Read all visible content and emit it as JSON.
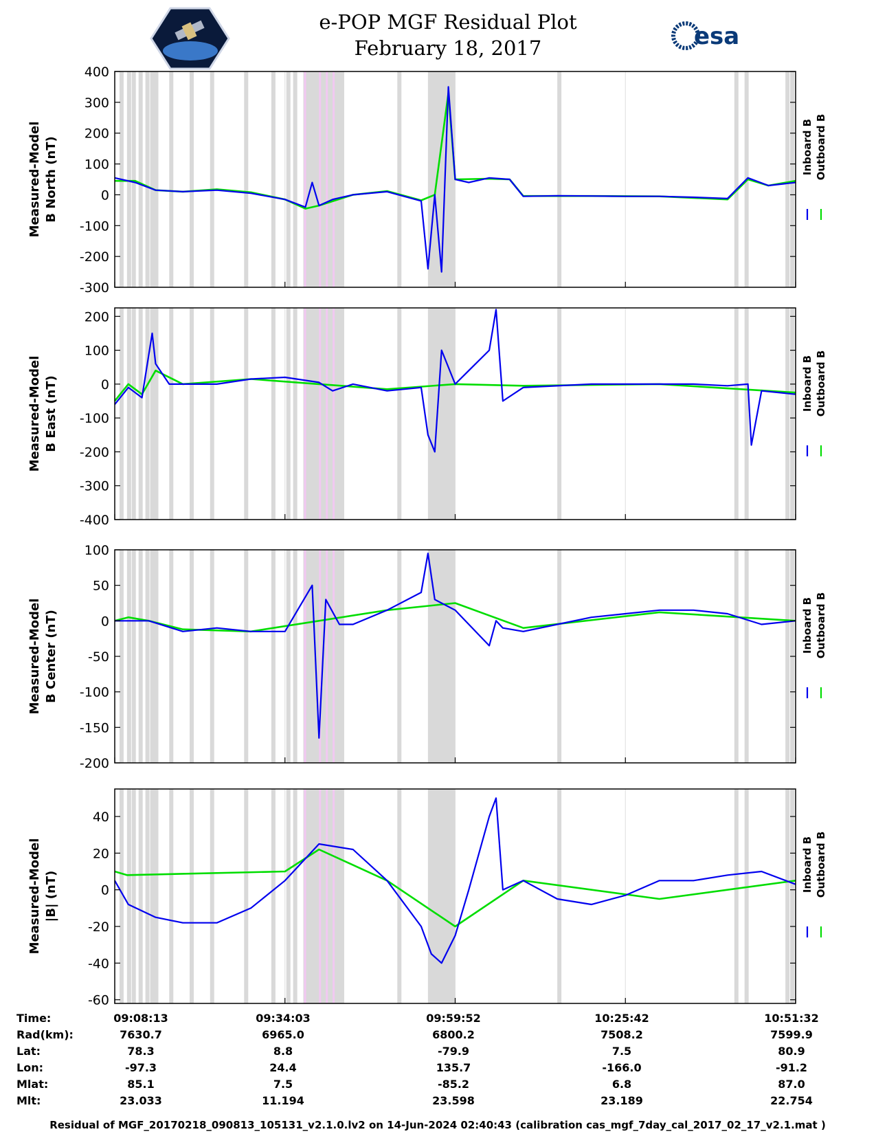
{
  "header": {
    "title": "e-POP MGF Residual Plot",
    "subtitle": "February 18, 2017",
    "right_logo_text": "esa",
    "left_logo": "cassiope-mission-badge"
  },
  "colors": {
    "inboard": "#0000ee",
    "outboard": "#00dd00",
    "shade_gray": "#d9d9d9",
    "shade_pink": "#f2c8f2",
    "grid": "#dddddd"
  },
  "chart_data": [
    {
      "type": "line",
      "ylabel_line1": "Measured-Model",
      "ylabel_line2": "B North (nT)",
      "ylim": [
        -300,
        400
      ],
      "yticks": [
        "400",
        "300",
        "200",
        "100",
        "0",
        "-100",
        "-200",
        "-300"
      ],
      "legend": [
        "Inboard B",
        "Outboard B"
      ],
      "series": [
        {
          "name": "Inboard B",
          "x": [
            0,
            0.03,
            0.06,
            0.1,
            0.15,
            0.2,
            0.25,
            0.28,
            0.29,
            0.3,
            0.32,
            0.35,
            0.4,
            0.45,
            0.46,
            0.47,
            0.48,
            0.49,
            0.5,
            0.52,
            0.55,
            0.58,
            0.6,
            0.65,
            0.7,
            0.75,
            0.8,
            0.85,
            0.9,
            0.93,
            0.96,
            1.0
          ],
          "values": [
            55,
            40,
            15,
            10,
            15,
            5,
            -15,
            -40,
            40,
            -35,
            -15,
            0,
            10,
            -20,
            -240,
            0,
            -250,
            350,
            50,
            40,
            55,
            50,
            -5,
            -3,
            -4,
            -5,
            -5,
            -8,
            -12,
            55,
            30,
            40
          ]
        },
        {
          "name": "Outboard B",
          "x": [
            0,
            0.03,
            0.06,
            0.1,
            0.15,
            0.2,
            0.25,
            0.28,
            0.3,
            0.35,
            0.4,
            0.45,
            0.47,
            0.49,
            0.5,
            0.55,
            0.58,
            0.6,
            0.7,
            0.8,
            0.9,
            0.93,
            0.96,
            1.0
          ],
          "values": [
            45,
            45,
            15,
            10,
            18,
            8,
            -15,
            -45,
            -35,
            0,
            12,
            -18,
            0,
            330,
            50,
            52,
            50,
            -4,
            -4,
            -5,
            -15,
            50,
            30,
            45
          ]
        }
      ]
    },
    {
      "type": "line",
      "ylabel_line1": "Measured-Model",
      "ylabel_line2": "B East (nT)",
      "ylim": [
        -400,
        225
      ],
      "yticks": [
        "200",
        "100",
        "0",
        "-100",
        "-200",
        "-300",
        "-400"
      ],
      "legend": [
        "Inboard B",
        "Outboard B"
      ],
      "series": [
        {
          "name": "Inboard B",
          "x": [
            0,
            0.02,
            0.04,
            0.055,
            0.06,
            0.08,
            0.15,
            0.2,
            0.25,
            0.3,
            0.32,
            0.35,
            0.4,
            0.45,
            0.46,
            0.47,
            0.48,
            0.5,
            0.52,
            0.55,
            0.56,
            0.57,
            0.6,
            0.7,
            0.8,
            0.85,
            0.9,
            0.93,
            0.935,
            0.95,
            1.0
          ],
          "values": [
            -60,
            -10,
            -40,
            150,
            60,
            0,
            0,
            15,
            20,
            5,
            -20,
            0,
            -20,
            -10,
            -150,
            -200,
            100,
            0,
            40,
            100,
            220,
            -50,
            -10,
            0,
            0,
            0,
            -5,
            0,
            -180,
            -20,
            -30
          ]
        },
        {
          "name": "Outboard B",
          "x": [
            0,
            0.02,
            0.04,
            0.06,
            0.1,
            0.2,
            0.3,
            0.4,
            0.5,
            0.6,
            0.8,
            1.0
          ],
          "values": [
            -50,
            0,
            -30,
            40,
            0,
            15,
            0,
            -15,
            0,
            -5,
            0,
            -25
          ]
        }
      ]
    },
    {
      "type": "line",
      "ylabel_line1": "Measured-Model",
      "ylabel_line2": "B Center (nT)",
      "ylim": [
        -200,
        100
      ],
      "yticks": [
        "100",
        "50",
        "0",
        "-50",
        "-100",
        "-150",
        "-200"
      ],
      "legend": [
        "Inboard B",
        "Outboard B"
      ],
      "series": [
        {
          "name": "Inboard B",
          "x": [
            0,
            0.05,
            0.1,
            0.15,
            0.2,
            0.25,
            0.29,
            0.3,
            0.31,
            0.33,
            0.35,
            0.4,
            0.45,
            0.46,
            0.47,
            0.5,
            0.55,
            0.56,
            0.57,
            0.6,
            0.65,
            0.7,
            0.75,
            0.8,
            0.85,
            0.9,
            0.95,
            1.0
          ],
          "values": [
            0,
            0,
            -15,
            -10,
            -15,
            -15,
            50,
            -165,
            30,
            -5,
            -5,
            15,
            40,
            95,
            30,
            15,
            -35,
            0,
            -10,
            -15,
            -5,
            5,
            10,
            15,
            15,
            10,
            -5,
            0
          ]
        },
        {
          "name": "Outboard B",
          "x": [
            0,
            0.02,
            0.05,
            0.1,
            0.2,
            0.3,
            0.4,
            0.5,
            0.6,
            0.8,
            1.0
          ],
          "values": [
            0,
            5,
            0,
            -12,
            -15,
            0,
            15,
            25,
            -10,
            12,
            0
          ]
        }
      ]
    },
    {
      "type": "line",
      "ylabel_line1": "Measured-Model",
      "ylabel_line2": "|B| (nT)",
      "ylim": [
        -62,
        55
      ],
      "yticks": [
        "40",
        "20",
        "0",
        "-20",
        "-40",
        "-60"
      ],
      "legend": [
        "Inboard B",
        "Outboard B"
      ],
      "series": [
        {
          "name": "Inboard B",
          "x": [
            0,
            0.02,
            0.06,
            0.1,
            0.15,
            0.2,
            0.25,
            0.3,
            0.35,
            0.4,
            0.45,
            0.465,
            0.48,
            0.5,
            0.52,
            0.55,
            0.56,
            0.57,
            0.6,
            0.65,
            0.7,
            0.75,
            0.8,
            0.85,
            0.9,
            0.95,
            1.0
          ],
          "values": [
            5,
            -8,
            -15,
            -18,
            -18,
            -10,
            5,
            25,
            22,
            5,
            -20,
            -35,
            -40,
            -25,
            0,
            40,
            50,
            0,
            5,
            -5,
            -8,
            -3,
            5,
            5,
            8,
            10,
            3
          ]
        },
        {
          "name": "Outboard B",
          "x": [
            0,
            0.018,
            0.25,
            0.3,
            0.4,
            0.5,
            0.6,
            0.8,
            1.0
          ],
          "values": [
            10,
            8,
            10,
            22,
            5,
            -20,
            5,
            -5,
            5
          ]
        }
      ]
    }
  ],
  "info_table": {
    "row_labels": [
      "Time:",
      "Rad(km):",
      "Lat:",
      "Lon:",
      "Mlat:",
      "Mlt:"
    ],
    "columns": [
      [
        "09:08:13",
        "7630.7",
        "78.3",
        "-97.3",
        "85.1",
        "23.033"
      ],
      [
        "09:34:03",
        "6965.0",
        "8.8",
        "24.4",
        "7.5",
        "11.194"
      ],
      [
        "09:59:52",
        "6800.2",
        "-79.9",
        "135.7",
        "-85.2",
        "23.598"
      ],
      [
        "10:25:42",
        "7508.2",
        "7.5",
        "-166.0",
        "6.8",
        "23.189"
      ],
      [
        "10:51:32",
        "7599.9",
        "80.9",
        "-91.2",
        "87.0",
        "22.754"
      ]
    ]
  },
  "shading": {
    "gray_bands": [
      [
        0.46,
        0.5
      ],
      [
        0.277,
        0.337
      ]
    ],
    "pink_lines": [
      0.278,
      0.3,
      0.31,
      0.32
    ]
  },
  "footer": "Residual of MGF_20170218_090813_105131_v2.1.0.lv2 on 14-Jun-2024 02:40:43 (calibration cas_mgf_7day_cal_2017_02_17_v2.1.mat )"
}
